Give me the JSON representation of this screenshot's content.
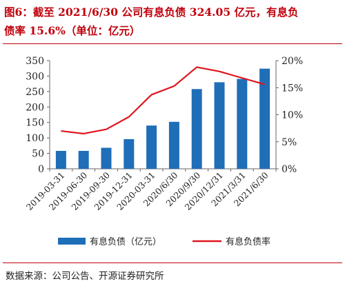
{
  "title": {
    "line1": "图6：截至 2021/6/30 公司有息负债 324.05 亿元，有息负",
    "line2": "债率 15.6%（单位：亿元）"
  },
  "source": "数据来源：公司公告、开源证券研究所",
  "colors": {
    "bar": "#1f6eb8",
    "line": "#e0141c",
    "title": "#c0000c"
  },
  "chart_data": {
    "type": "bar",
    "title": "",
    "categories": [
      "2019-03-31",
      "2019-06-30",
      "2019-09-30",
      "2019-12-31",
      "2020-03-31",
      "2020/6/30",
      "2020/9/30",
      "2020/12/31",
      "2021/3/31",
      "2021/6/30"
    ],
    "series": [
      {
        "name": "有息负债（亿元）",
        "type": "bar",
        "axis": "left",
        "values": [
          58,
          58,
          68,
          96,
          140,
          152,
          258,
          280,
          291,
          324.05
        ]
      },
      {
        "name": "有息负债率",
        "type": "line",
        "axis": "right",
        "values": [
          7.0,
          6.5,
          7.3,
          9.6,
          13.7,
          15.3,
          18.8,
          18.0,
          16.8,
          15.6
        ]
      }
    ],
    "ylim_left": [
      0,
      350
    ],
    "yticks_left": [
      "0",
      "50",
      "100",
      "150",
      "200",
      "250",
      "300",
      "350"
    ],
    "ylim_right": [
      0,
      20
    ],
    "yticks_right": [
      "0%",
      "5%",
      "10%",
      "15%",
      "20%"
    ],
    "grid": false,
    "legend": "bottom"
  }
}
